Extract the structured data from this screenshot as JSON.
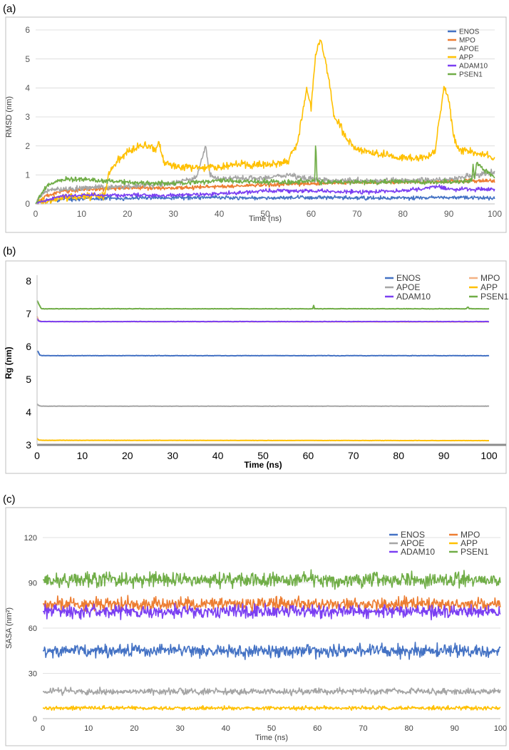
{
  "colors": {
    "ENOS": "#4472C4",
    "MPO": "#ED7D31",
    "APOE": "#A5A5A5",
    "APP": "#FFC000",
    "ADAM10": "#7B3FF2",
    "PSEN1": "#70AD47",
    "MPO_b": "#F4B183",
    "overlap_b": "#B4507A"
  },
  "chart_data": [
    {
      "panel": "(a)",
      "type": "line",
      "xlabel": "Time (ns)",
      "ylabel": "RMSD (nm)",
      "xlim": [
        0,
        100
      ],
      "ylim": [
        0,
        6
      ],
      "xticks": [
        "0",
        "10",
        "20",
        "30",
        "40",
        "50",
        "60",
        "70",
        "80",
        "90",
        "100"
      ],
      "yticks": [
        "0",
        "1",
        "2",
        "3",
        "4",
        "5",
        "6"
      ],
      "grid": true,
      "legend_position": "top-right",
      "legend_layout": "single-column",
      "series": [
        {
          "name": "ENOS",
          "color_key": "ENOS",
          "noise": 0.05,
          "x": [
            0,
            2,
            5,
            10,
            20,
            30,
            40,
            50,
            60,
            70,
            80,
            90,
            100
          ],
          "y": [
            0,
            0.12,
            0.15,
            0.18,
            0.2,
            0.22,
            0.22,
            0.2,
            0.22,
            0.2,
            0.2,
            0.22,
            0.2
          ]
        },
        {
          "name": "MPO",
          "color_key": "MPO",
          "noise": 0.05,
          "x": [
            0,
            2,
            5,
            10,
            20,
            30,
            40,
            50,
            60,
            70,
            80,
            90,
            100
          ],
          "y": [
            0,
            0.25,
            0.4,
            0.5,
            0.55,
            0.55,
            0.6,
            0.65,
            0.7,
            0.75,
            0.75,
            0.78,
            0.8
          ]
        },
        {
          "name": "APOE",
          "color_key": "APOE",
          "noise": 0.07,
          "x": [
            0,
            2,
            5,
            10,
            20,
            30,
            35,
            36,
            37,
            38,
            40,
            50,
            55,
            60,
            70,
            80,
            90,
            100
          ],
          "y": [
            0,
            0.45,
            0.5,
            0.55,
            0.6,
            0.7,
            0.9,
            1.4,
            2.0,
            1.0,
            0.85,
            0.9,
            1.0,
            0.85,
            0.8,
            0.8,
            0.85,
            1.1
          ]
        },
        {
          "name": "APP",
          "color_key": "APP",
          "noise": 0.1,
          "x": [
            0,
            5,
            10,
            15,
            16,
            18,
            20,
            22,
            24,
            26,
            27,
            28,
            30,
            35,
            40,
            45,
            50,
            55,
            57,
            58,
            59,
            60,
            61,
            62,
            63,
            64,
            65,
            66,
            67,
            68,
            70,
            75,
            80,
            85,
            87,
            88,
            89,
            90,
            91,
            92,
            95,
            98,
            100
          ],
          "y": [
            0,
            0.2,
            0.25,
            0.3,
            1.1,
            1.5,
            1.8,
            2.0,
            2.0,
            1.9,
            2.1,
            1.4,
            1.3,
            1.25,
            1.3,
            1.35,
            1.35,
            1.5,
            2.1,
            3.0,
            4.0,
            3.3,
            5.2,
            5.7,
            5.0,
            4.2,
            3.0,
            2.8,
            2.5,
            2.2,
            1.9,
            1.7,
            1.6,
            1.6,
            1.8,
            3.0,
            4.0,
            3.6,
            2.4,
            1.9,
            1.8,
            1.7,
            1.5
          ]
        },
        {
          "name": "ADAM10",
          "color_key": "ADAM10",
          "noise": 0.05,
          "x": [
            0,
            5,
            10,
            20,
            30,
            40,
            45,
            50,
            60,
            70,
            80,
            85,
            88,
            90,
            100
          ],
          "y": [
            0,
            0.25,
            0.3,
            0.3,
            0.3,
            0.35,
            0.4,
            0.45,
            0.45,
            0.4,
            0.45,
            0.55,
            0.6,
            0.5,
            0.5
          ]
        },
        {
          "name": "PSEN1",
          "color_key": "PSEN1",
          "noise": 0.06,
          "x": [
            0,
            2,
            4,
            6,
            10,
            20,
            30,
            40,
            50,
            55,
            60,
            60.8,
            61,
            61.3,
            62,
            70,
            80,
            90,
            95,
            95.3,
            95.6,
            96,
            100
          ],
          "y": [
            0,
            0.55,
            0.75,
            0.85,
            0.85,
            0.75,
            0.7,
            0.8,
            0.75,
            0.75,
            0.8,
            0.8,
            2.2,
            0.8,
            0.75,
            0.75,
            0.75,
            0.75,
            0.8,
            1.4,
            0.8,
            1.4,
            0.9
          ]
        }
      ]
    },
    {
      "panel": "(b)",
      "type": "line",
      "xlabel": "Time (ns)",
      "ylabel": "Rg (nm)",
      "xlim": [
        0,
        100
      ],
      "ylim": [
        3,
        8
      ],
      "xticks": [
        "0",
        "10",
        "20",
        "30",
        "40",
        "50",
        "60",
        "70",
        "80",
        "90",
        "100"
      ],
      "yticks": [
        "3",
        "4",
        "5",
        "6",
        "7",
        "8"
      ],
      "grid": false,
      "legend_position": "top-right",
      "legend_layout": "two-column",
      "series": [
        {
          "name": "ENOS",
          "color_key": "ENOS",
          "noise": 0.005,
          "x": [
            0,
            0.2,
            0.6,
            1,
            100
          ],
          "y": [
            5.85,
            5.85,
            5.74,
            5.72,
            5.72
          ]
        },
        {
          "name": "MPO",
          "color_key": "MPO_b",
          "noise": 0.004,
          "x": [
            0,
            0.3,
            1,
            100
          ],
          "y": [
            6.92,
            6.8,
            6.76,
            6.75
          ]
        },
        {
          "name": "APOE",
          "color_key": "APOE",
          "noise": 0.004,
          "x": [
            0,
            0.3,
            1,
            100
          ],
          "y": [
            4.25,
            4.2,
            4.18,
            4.18
          ]
        },
        {
          "name": "APP",
          "color_key": "APP",
          "noise": 0.003,
          "x": [
            0,
            0.3,
            1,
            100
          ],
          "y": [
            3.2,
            3.15,
            3.14,
            3.13
          ]
        },
        {
          "name": "ADAM10",
          "color_key": "ADAM10",
          "noise": 0.004,
          "x": [
            0,
            0.3,
            1,
            100
          ],
          "y": [
            6.85,
            6.78,
            6.76,
            6.76
          ]
        },
        {
          "name": "PSEN1",
          "color_key": "PSEN1",
          "noise": 0.005,
          "x": [
            0,
            0.2,
            0.8,
            1,
            61,
            61.2,
            61.4,
            95,
            95.3,
            95.6,
            100
          ],
          "y": [
            7.4,
            7.35,
            7.18,
            7.15,
            7.15,
            7.25,
            7.15,
            7.15,
            7.22,
            7.15,
            7.15
          ]
        }
      ]
    },
    {
      "panel": "(c)",
      "type": "line",
      "xlabel": "Time (ns)",
      "ylabel": "SASA (nm²)",
      "xlim": [
        0,
        100
      ],
      "ylim": [
        0,
        120
      ],
      "xticks": [
        "0",
        "10",
        "20",
        "30",
        "40",
        "50",
        "60",
        "70",
        "80",
        "90",
        "100"
      ],
      "yticks": [
        "0",
        "30",
        "60",
        "90",
        "120"
      ],
      "grid": true,
      "legend_position": "top-right",
      "legend_layout": "two-column",
      "series": [
        {
          "name": "ENOS",
          "color_key": "ENOS",
          "noise": 3.2,
          "x": [
            0,
            100
          ],
          "y": [
            45,
            45
          ]
        },
        {
          "name": "MPO",
          "color_key": "MPO",
          "noise": 3.2,
          "x": [
            0,
            100
          ],
          "y": [
            76,
            76
          ]
        },
        {
          "name": "APOE",
          "color_key": "APOE",
          "noise": 1.6,
          "x": [
            0,
            100
          ],
          "y": [
            18,
            18
          ]
        },
        {
          "name": "APP",
          "color_key": "APP",
          "noise": 1.0,
          "x": [
            0,
            100
          ],
          "y": [
            7,
            7
          ]
        },
        {
          "name": "ADAM10",
          "color_key": "ADAM10",
          "noise": 3.2,
          "x": [
            0,
            100
          ],
          "y": [
            71,
            71
          ]
        },
        {
          "name": "PSEN1",
          "color_key": "PSEN1",
          "noise": 3.8,
          "x": [
            0,
            100
          ],
          "y": [
            92,
            92
          ]
        }
      ]
    }
  ]
}
